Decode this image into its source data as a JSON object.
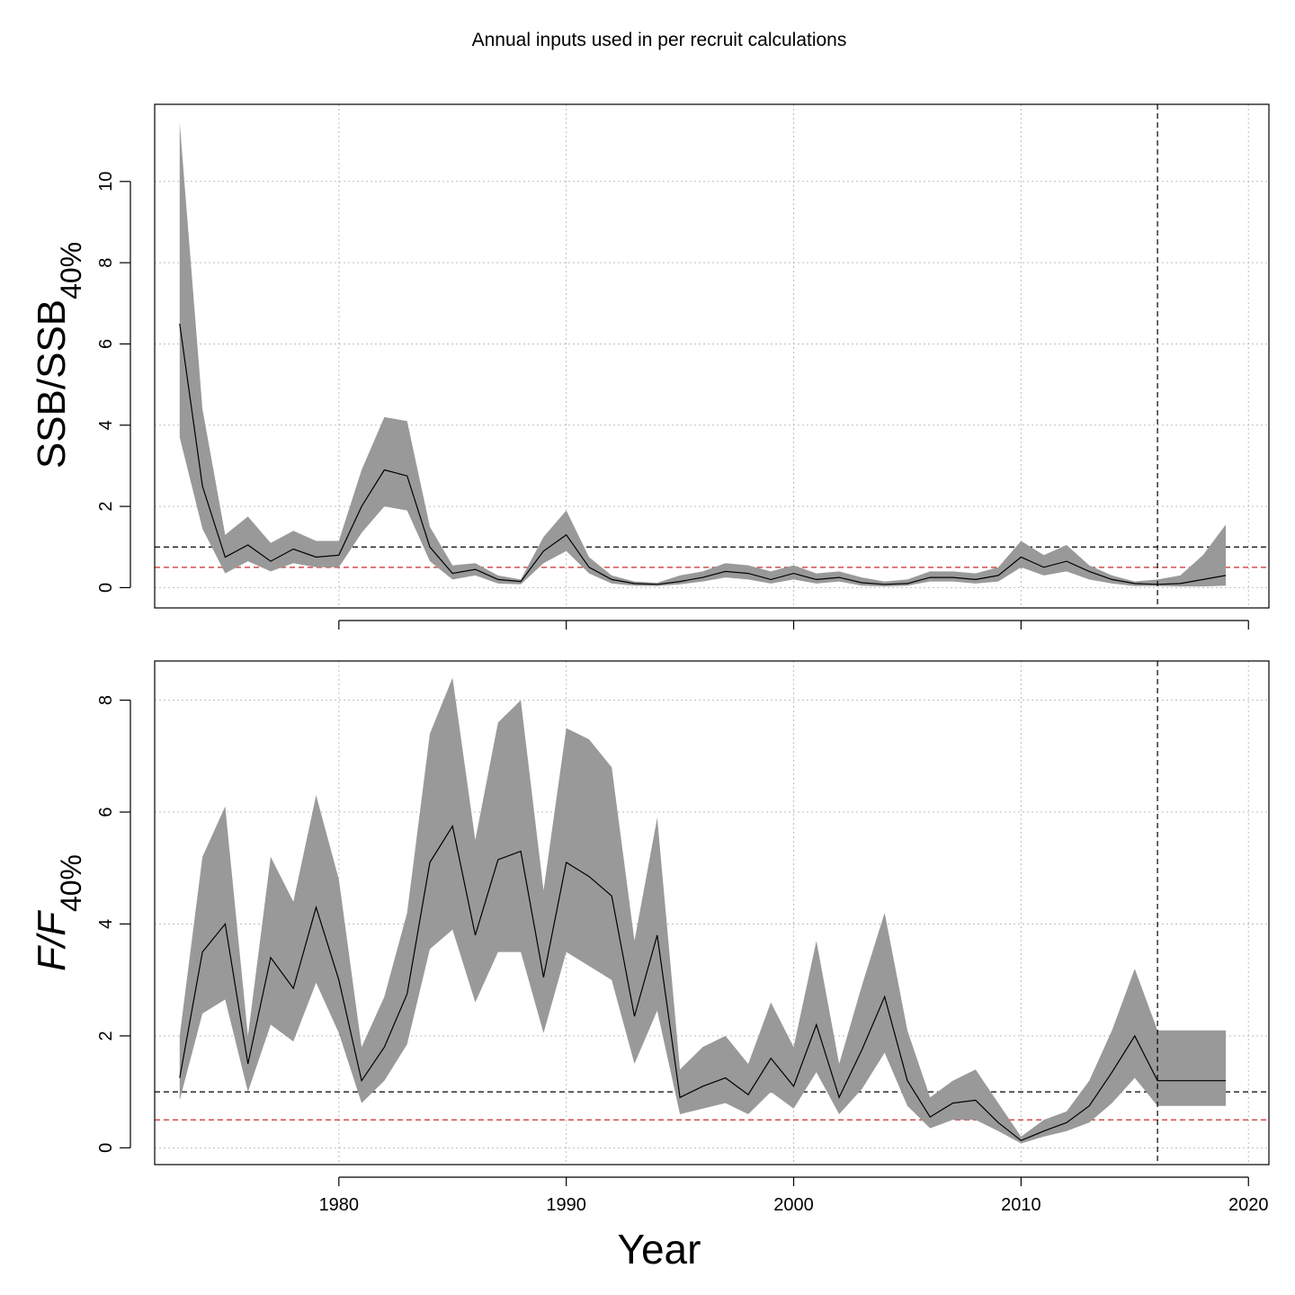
{
  "figure": {
    "title": "Annual inputs used in per recruit calculations",
    "xlabel": "Year",
    "x_ticks": [
      1980,
      1990,
      2000,
      2010,
      2020
    ],
    "xlim": [
      1971.9,
      2020.9
    ],
    "projection_start_year": 2016
  },
  "colors": {
    "band": "#999999",
    "median": "#000000",
    "ref_line_black": "#000000",
    "ref_line_red": "#cc2b2b",
    "grid": "#bdbdbd"
  },
  "chart_data": [
    {
      "type": "area",
      "title": "",
      "ylabel": {
        "main": "SSB/SSB",
        "sub": "40%"
      },
      "ylim": [
        -0.5,
        11.9
      ],
      "y_ticks": [
        0,
        2,
        4,
        6,
        8,
        10
      ],
      "reference_lines": [
        {
          "y": 1.0,
          "color": "#000000",
          "style": "dashed"
        },
        {
          "y": 0.5,
          "color": "#cc2b2b",
          "style": "dashed"
        }
      ],
      "x": [
        1973,
        1974,
        1975,
        1976,
        1977,
        1978,
        1979,
        1980,
        1981,
        1982,
        1983,
        1984,
        1985,
        1986,
        1987,
        1988,
        1989,
        1990,
        1991,
        1992,
        1993,
        1994,
        1995,
        1996,
        1997,
        1998,
        1999,
        2000,
        2001,
        2002,
        2003,
        2004,
        2005,
        2006,
        2007,
        2008,
        2009,
        2010,
        2011,
        2012,
        2013,
        2014,
        2015,
        2016,
        2017,
        2018,
        2019
      ],
      "series": [
        {
          "name": "upper",
          "values": [
            11.45,
            4.4,
            1.3,
            1.75,
            1.1,
            1.4,
            1.15,
            1.15,
            2.9,
            4.2,
            4.1,
            1.5,
            0.55,
            0.6,
            0.3,
            0.2,
            1.25,
            1.9,
            0.75,
            0.3,
            0.15,
            0.12,
            0.3,
            0.4,
            0.6,
            0.55,
            0.4,
            0.55,
            0.35,
            0.4,
            0.25,
            0.15,
            0.2,
            0.4,
            0.4,
            0.35,
            0.5,
            1.15,
            0.8,
            1.05,
            0.55,
            0.3,
            0.15,
            0.2,
            0.3,
            0.8,
            1.55
          ]
        },
        {
          "name": "median",
          "values": [
            6.5,
            2.5,
            0.75,
            1.05,
            0.65,
            0.95,
            0.75,
            0.8,
            2.0,
            2.9,
            2.75,
            1.0,
            0.35,
            0.45,
            0.2,
            0.15,
            0.9,
            1.3,
            0.5,
            0.2,
            0.1,
            0.08,
            0.15,
            0.25,
            0.4,
            0.35,
            0.2,
            0.35,
            0.2,
            0.25,
            0.12,
            0.08,
            0.1,
            0.25,
            0.25,
            0.2,
            0.3,
            0.75,
            0.5,
            0.65,
            0.4,
            0.2,
            0.1,
            0.08,
            0.1,
            0.2,
            0.3
          ]
        },
        {
          "name": "lower",
          "values": [
            3.7,
            1.45,
            0.35,
            0.65,
            0.4,
            0.6,
            0.5,
            0.5,
            1.35,
            2.0,
            1.9,
            0.65,
            0.2,
            0.3,
            0.1,
            0.08,
            0.6,
            0.9,
            0.35,
            0.1,
            0.05,
            0.04,
            0.08,
            0.15,
            0.25,
            0.2,
            0.1,
            0.2,
            0.1,
            0.15,
            0.05,
            0.03,
            0.05,
            0.15,
            0.15,
            0.1,
            0.15,
            0.5,
            0.3,
            0.4,
            0.2,
            0.1,
            0.04,
            0.04,
            0.03,
            0.03,
            0.05
          ]
        }
      ]
    },
    {
      "type": "area",
      "title": "",
      "ylabel": {
        "main": "F/F",
        "sub": "40%"
      },
      "ylim": [
        -0.3,
        8.7
      ],
      "y_ticks": [
        0,
        2,
        4,
        6,
        8
      ],
      "reference_lines": [
        {
          "y": 1.0,
          "color": "#000000",
          "style": "dashed"
        },
        {
          "y": 0.5,
          "color": "#cc2b2b",
          "style": "dashed"
        }
      ],
      "x": [
        1973,
        1974,
        1975,
        1976,
        1977,
        1978,
        1979,
        1980,
        1981,
        1982,
        1983,
        1984,
        1985,
        1986,
        1987,
        1988,
        1989,
        1990,
        1991,
        1992,
        1993,
        1994,
        1995,
        1996,
        1997,
        1998,
        1999,
        2000,
        2001,
        2002,
        2003,
        2004,
        2005,
        2006,
        2007,
        2008,
        2009,
        2010,
        2011,
        2012,
        2013,
        2014,
        2015,
        2016,
        2017,
        2018,
        2019
      ],
      "series": [
        {
          "name": "upper",
          "values": [
            2.0,
            5.2,
            6.1,
            2.0,
            5.2,
            4.4,
            6.3,
            4.8,
            1.8,
            2.7,
            4.2,
            7.4,
            8.4,
            5.5,
            7.6,
            8.0,
            4.6,
            7.5,
            7.3,
            6.8,
            3.7,
            5.9,
            1.4,
            1.8,
            2.0,
            1.5,
            2.6,
            1.8,
            3.7,
            1.5,
            2.9,
            4.2,
            2.1,
            0.9,
            1.2,
            1.4,
            0.8,
            0.2,
            0.5,
            0.65,
            1.2,
            2.1,
            3.2,
            2.1,
            2.1,
            2.1,
            2.1
          ]
        },
        {
          "name": "median",
          "values": [
            1.25,
            3.5,
            4.0,
            1.5,
            3.4,
            2.85,
            4.3,
            3.0,
            1.2,
            1.8,
            2.75,
            5.1,
            5.75,
            3.8,
            5.15,
            5.3,
            3.05,
            5.1,
            4.85,
            4.5,
            2.35,
            3.8,
            0.9,
            1.1,
            1.25,
            0.95,
            1.6,
            1.1,
            2.2,
            0.9,
            1.75,
            2.7,
            1.2,
            0.55,
            0.8,
            0.85,
            0.45,
            0.13,
            0.3,
            0.45,
            0.75,
            1.35,
            2.0,
            1.2,
            1.2,
            1.2,
            1.2
          ]
        },
        {
          "name": "lower",
          "values": [
            0.85,
            2.4,
            2.65,
            1.0,
            2.2,
            1.9,
            2.95,
            2.05,
            0.8,
            1.2,
            1.85,
            3.55,
            3.9,
            2.6,
            3.5,
            3.5,
            2.05,
            3.5,
            3.25,
            3.0,
            1.5,
            2.45,
            0.6,
            0.7,
            0.8,
            0.6,
            1.0,
            0.7,
            1.35,
            0.6,
            1.05,
            1.7,
            0.75,
            0.35,
            0.5,
            0.5,
            0.3,
            0.08,
            0.2,
            0.3,
            0.45,
            0.8,
            1.25,
            0.75,
            0.75,
            0.75,
            0.75
          ]
        }
      ]
    }
  ]
}
